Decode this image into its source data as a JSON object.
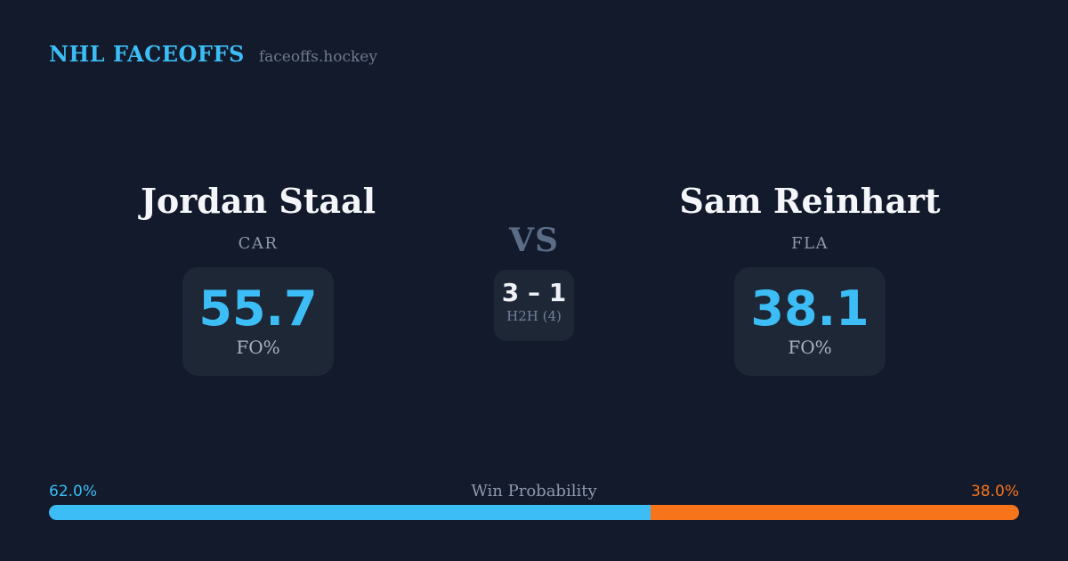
{
  "header": {
    "brand": "NHL FACEOFFS",
    "site": "faceoffs.hockey"
  },
  "players": {
    "left": {
      "name": "Jordan Staal",
      "team": "CAR",
      "stat_value": "55.7",
      "stat_label": "FO%"
    },
    "right": {
      "name": "Sam Reinhart",
      "team": "FLA",
      "stat_value": "38.1",
      "stat_label": "FO%"
    }
  },
  "matchup": {
    "vs_label": "VS",
    "h2h_score": "3 – 1",
    "h2h_label": "H2H (4)"
  },
  "win_probability": {
    "title": "Win Probability",
    "left_pct_label": "62.0%",
    "right_pct_label": "38.0%",
    "left_value": 62.0,
    "right_value": 38.0
  },
  "colors": {
    "background": "#121a2b",
    "card": "#1d2736",
    "accent_blue": "#3cbdf5",
    "accent_orange": "#f7741b",
    "text_primary": "#f4f6f9",
    "text_muted": "#8e99ad"
  },
  "chart_data": {
    "type": "bar",
    "title": "Win Probability",
    "categories": [
      "Jordan Staal (CAR)",
      "Sam Reinhart (FLA)"
    ],
    "series": [
      {
        "name": "Win Probability %",
        "values": [
          62.0,
          38.0
        ]
      },
      {
        "name": "Faceoff Win % (FO%)",
        "values": [
          55.7,
          38.1
        ]
      }
    ],
    "annotations": [
      "Head-to-head record: 3 – 1 over 4 faceoffs"
    ],
    "xlabel": "",
    "ylabel": "",
    "ylim": [
      0,
      100
    ],
    "grid": false,
    "legend_position": "none"
  }
}
